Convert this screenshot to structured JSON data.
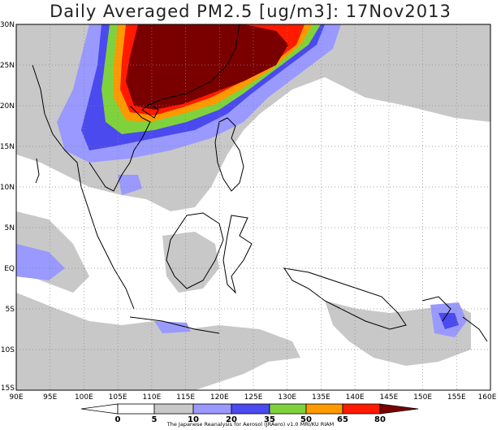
{
  "title": "Daily Averaged PM2.5 [ug/m3]: 17Nov2013",
  "credit": "The Japanese Reanalysis for Aerosol (JRAero) v1.0 MRI/KU RIAM",
  "lat_labels": [
    "30N",
    "25N",
    "20N",
    "15N",
    "10N",
    "5N",
    "EQ",
    "5S",
    "10S",
    "15S"
  ],
  "lon_labels": [
    "90E",
    "95E",
    "100E",
    "105E",
    "110E",
    "115E",
    "120E",
    "125E",
    "130E",
    "135E",
    "140E",
    "145E",
    "150E",
    "155E",
    "160E"
  ],
  "colorbar": {
    "labels": [
      "0",
      "5",
      "10",
      "20",
      "35",
      "50",
      "65",
      "80"
    ],
    "colors": [
      "#ffffff",
      "#ffffff",
      "#c8c8c8",
      "#9999ff",
      "#4a4aee",
      "#80d23c",
      "#ff9900",
      "#ff1a00",
      "#7a0000"
    ]
  }
}
